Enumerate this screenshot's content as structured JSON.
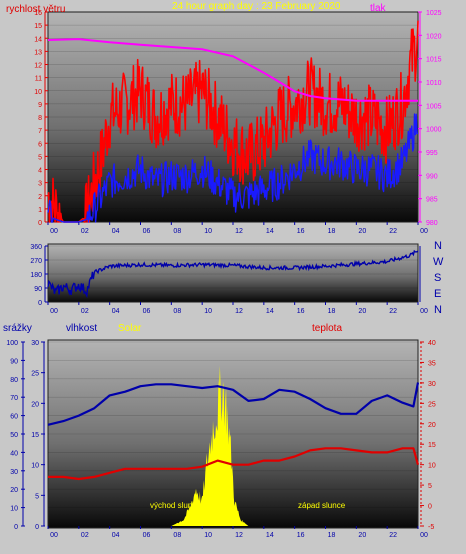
{
  "header": {
    "title": "24 hour graph day : 23 February 2020",
    "wind_label": "rychlost větru",
    "pressure_label": "tlak"
  },
  "bottom_labels": {
    "rain": "srážky",
    "humidity": "vlhkost",
    "solar": "Solar",
    "temperature": "teplota"
  },
  "annotations": {
    "sunrise": "východ slunce",
    "sunset": "západ slunce"
  },
  "directions": [
    "N",
    "W",
    "S",
    "E",
    "N"
  ],
  "colors": {
    "wind_gust": "#ff0000",
    "wind_avg": "#1a1aff",
    "pressure": "#ff00ff",
    "direction": "#0000aa",
    "humidity": "#0000aa",
    "temperature": "#e00000",
    "solar": "#ffff00",
    "title": "#ffff00"
  },
  "chart_data": [
    {
      "type": "line",
      "x_ticks": [
        "00",
        "02",
        "04",
        "06",
        "08",
        "10",
        "12",
        "14",
        "16",
        "18",
        "20",
        "22",
        "00"
      ],
      "y_left_ticks": [
        "0",
        "1",
        "2",
        "3",
        "4",
        "5",
        "6",
        "7",
        "8",
        "9",
        "10",
        "11",
        "12",
        "13",
        "14",
        "15",
        "16"
      ],
      "y_right_ticks": [
        "980",
        "985",
        "990",
        "995",
        "1000",
        "1005",
        "1010",
        "1015",
        "1020",
        "1025"
      ],
      "ylim_left": [
        0,
        16
      ],
      "ylim_right": [
        980,
        1025
      ],
      "series": [
        {
          "name": "rychlost větru",
          "axis": "left",
          "style": "gust",
          "x": [
            0,
            0.5,
            1,
            2,
            2.5,
            3,
            3.5,
            4,
            5,
            6,
            7,
            8,
            9,
            10,
            11,
            12,
            13,
            14,
            15,
            16,
            17,
            18,
            19,
            20,
            21,
            22,
            23,
            23.5,
            24
          ],
          "y": [
            2,
            1,
            0,
            0,
            0.5,
            3,
            5,
            8,
            9,
            10,
            8,
            9,
            9,
            10,
            8,
            6,
            5,
            6,
            8,
            9,
            10,
            9,
            9,
            8,
            8,
            7,
            9,
            12,
            14
          ]
        },
        {
          "name": "",
          "axis": "left",
          "style": "avg",
          "x": [
            0,
            0.5,
            1,
            2,
            2.5,
            3,
            3.5,
            4,
            5,
            6,
            7,
            8,
            9,
            10,
            11,
            12,
            13,
            14,
            15,
            16,
            17,
            18,
            19,
            20,
            21,
            22,
            23,
            23.5,
            24
          ],
          "y": [
            0.5,
            0.2,
            0,
            0,
            0.2,
            1,
            2,
            3,
            3.5,
            4,
            3,
            3.5,
            3.5,
            4,
            3,
            2,
            2,
            2.5,
            3,
            4,
            5,
            4.5,
            4.5,
            4,
            4,
            3.5,
            4.5,
            6,
            8
          ]
        },
        {
          "name": "tlak",
          "axis": "right",
          "x": [
            0,
            2,
            4,
            6,
            8,
            10,
            12,
            14,
            15,
            16,
            17,
            18,
            20,
            22,
            24
          ],
          "y": [
            1019,
            1019.2,
            1018.5,
            1018,
            1017.5,
            1017,
            1015.5,
            1012,
            1010,
            1008,
            1007,
            1006.5,
            1006,
            1006,
            1006
          ]
        }
      ]
    },
    {
      "type": "line",
      "x_ticks": [
        "00",
        "02",
        "04",
        "06",
        "08",
        "10",
        "12",
        "14",
        "16",
        "18",
        "20",
        "22",
        "00"
      ],
      "y_ticks": [
        "0",
        "90",
        "180",
        "270",
        "360"
      ],
      "ylim": [
        0,
        360
      ],
      "series": [
        {
          "name": "",
          "x": [
            0,
            0.5,
            1,
            1.5,
            2,
            2.5,
            3,
            4,
            6,
            8,
            10,
            12,
            14,
            16,
            18,
            20,
            22,
            23.5,
            24
          ],
          "y": [
            120,
            60,
            100,
            80,
            110,
            70,
            190,
            230,
            240,
            235,
            240,
            235,
            220,
            220,
            230,
            245,
            260,
            300,
            330
          ]
        }
      ]
    },
    {
      "type": "line",
      "x_ticks": [
        "00",
        "02",
        "04",
        "06",
        "08",
        "10",
        "12",
        "14",
        "16",
        "18",
        "20",
        "22",
        "00"
      ],
      "y_ticks_rain": [
        "0",
        "10",
        "20",
        "30",
        "40",
        "50",
        "60",
        "70",
        "80",
        "90",
        "100"
      ],
      "y_ticks_solar": [
        "0",
        "5",
        "10",
        "15",
        "20",
        "25",
        "30"
      ],
      "y_ticks_temp": [
        "-5",
        "0",
        "5",
        "10",
        "15",
        "20",
        "25",
        "30",
        "35",
        "40"
      ],
      "ylim_humidity": [
        0,
        100
      ],
      "ylim_temp": [
        -5,
        40
      ],
      "series": [
        {
          "name": "vlhkost",
          "axis": "humidity",
          "x": [
            0,
            1,
            2,
            3,
            4,
            5,
            6,
            7,
            8,
            9,
            10,
            11,
            12,
            13,
            14,
            15,
            16,
            17,
            18,
            19,
            20,
            21,
            22,
            23,
            23.7,
            24
          ],
          "y": [
            55,
            57,
            60,
            64,
            71,
            73,
            76,
            77,
            77,
            76,
            75,
            76,
            74,
            68,
            69,
            74,
            73,
            69,
            64,
            61,
            61,
            68,
            71,
            67,
            65,
            78
          ]
        },
        {
          "name": "teplota",
          "axis": "temp",
          "x": [
            0,
            1,
            2,
            3,
            4,
            5,
            6,
            7,
            8,
            9,
            10,
            11,
            12,
            13,
            14,
            15,
            16,
            17,
            18,
            19,
            20,
            21,
            22,
            23,
            23.7,
            24
          ],
          "y": [
            7,
            7,
            6.5,
            7,
            8,
            9,
            9,
            9,
            9,
            9,
            9.5,
            11,
            10,
            10,
            11,
            11,
            12,
            13.5,
            14,
            14,
            13.5,
            13,
            13,
            14,
            14,
            10
          ]
        },
        {
          "name": "Solar",
          "axis": "solar",
          "style": "area",
          "x": [
            0,
            8,
            8.8,
            9.2,
            9.6,
            10,
            10.3,
            10.7,
            11,
            11.3,
            11.6,
            11.9,
            12.1,
            12.5,
            13,
            24
          ],
          "y": [
            0,
            0,
            1,
            3,
            6,
            4,
            10,
            16,
            19,
            23,
            19,
            11,
            4,
            1,
            0,
            0
          ]
        }
      ]
    }
  ]
}
